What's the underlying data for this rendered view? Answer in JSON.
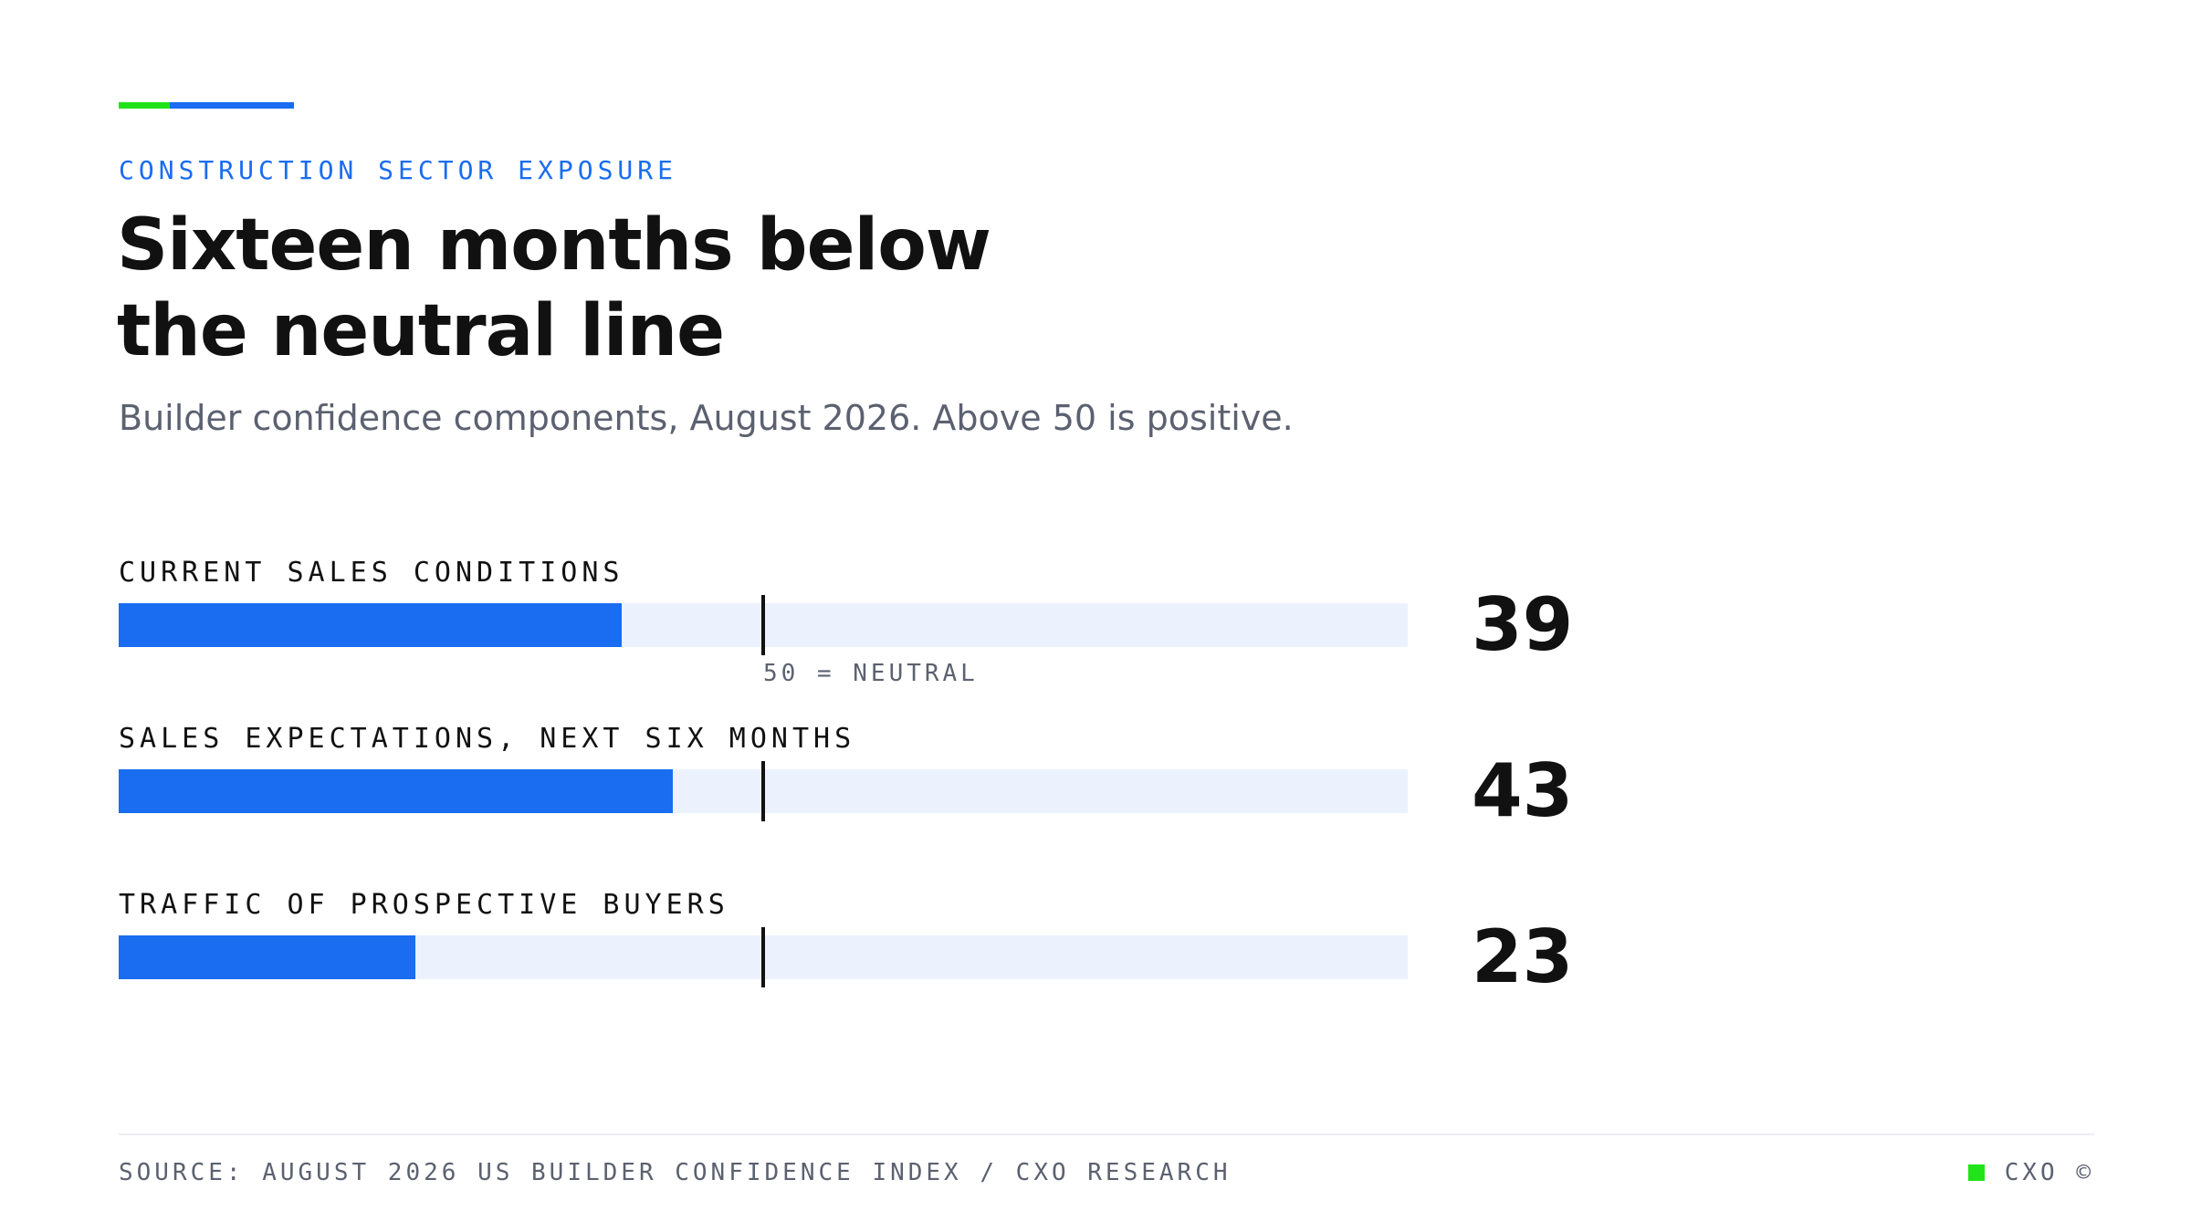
{
  "header": {
    "kicker": "CONSTRUCTION SECTOR EXPOSURE",
    "title": "Sixteen months below the neutral line",
    "subtitle": "Builder confidence components, August 2026. Above 50 is positive."
  },
  "colors": {
    "accent_green": "#22e31a",
    "accent_blue": "#1a6cf0",
    "track": "#ebf2fd",
    "text_primary": "#111111",
    "text_muted": "#5b6170"
  },
  "chart_data": {
    "type": "bar",
    "orientation": "horizontal",
    "categories": [
      "CURRENT SALES CONDITIONS",
      "SALES EXPECTATIONS, NEXT SIX MONTHS",
      "TRAFFIC OF PROSPECTIVE BUYERS"
    ],
    "values": [
      39,
      43,
      23
    ],
    "xlim": [
      0,
      100
    ],
    "reference_line": {
      "value": 50,
      "label": "50 = NEUTRAL"
    },
    "grid": false,
    "legend": "none"
  },
  "footer": {
    "source": "SOURCE: AUGUST 2026 US BUILDER CONFIDENCE INDEX / CXO RESEARCH",
    "brand": "CXO ©"
  }
}
